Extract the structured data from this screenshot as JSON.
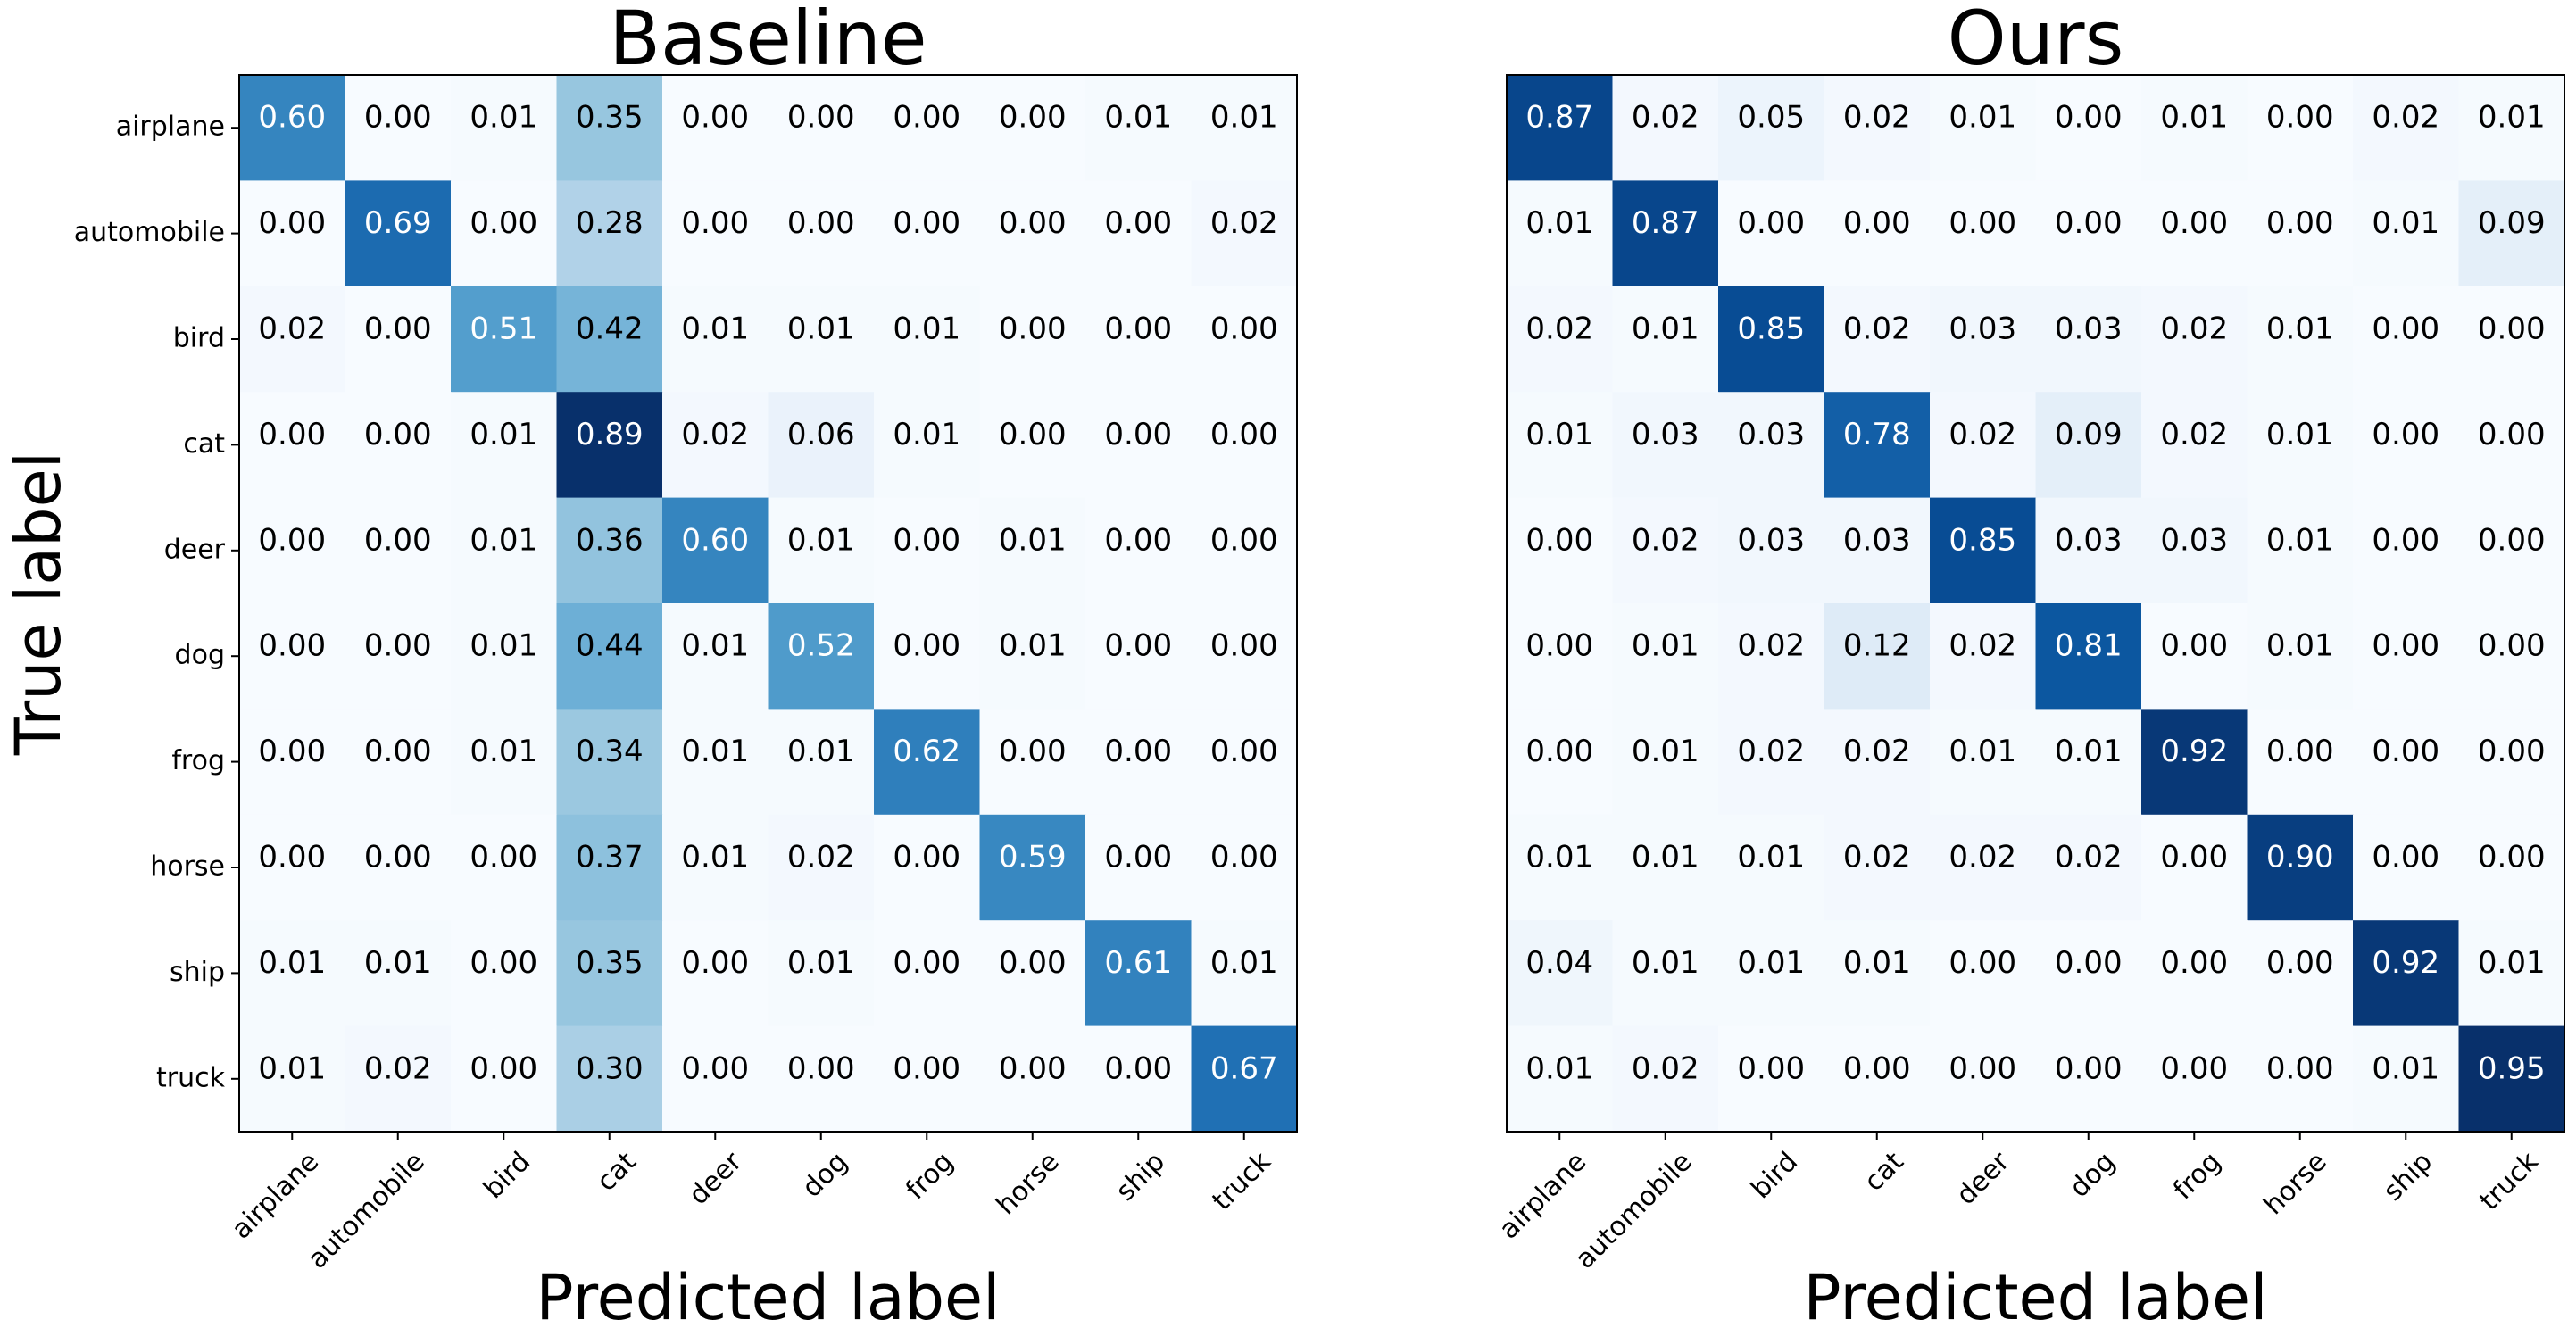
{
  "figure": {
    "ylabel": "True label"
  },
  "chart_data": [
    {
      "type": "heatmap",
      "title": "Baseline",
      "xlabel": "Predicted label",
      "ylabel": "True label",
      "colormap": "Blues",
      "x_categories": [
        "airplane",
        "automobile",
        "bird",
        "cat",
        "deer",
        "dog",
        "frog",
        "horse",
        "ship",
        "truck"
      ],
      "y_categories": [
        "airplane",
        "automobile",
        "bird",
        "cat",
        "deer",
        "dog",
        "frog",
        "horse",
        "ship",
        "truck"
      ],
      "values": [
        [
          0.6,
          0.0,
          0.01,
          0.35,
          0.0,
          0.0,
          0.0,
          0.0,
          0.01,
          0.01
        ],
        [
          0.0,
          0.69,
          0.0,
          0.28,
          0.0,
          0.0,
          0.0,
          0.0,
          0.0,
          0.02
        ],
        [
          0.02,
          0.0,
          0.51,
          0.42,
          0.01,
          0.01,
          0.01,
          0.0,
          0.0,
          0.0
        ],
        [
          0.0,
          0.0,
          0.01,
          0.89,
          0.02,
          0.06,
          0.01,
          0.0,
          0.0,
          0.0
        ],
        [
          0.0,
          0.0,
          0.01,
          0.36,
          0.6,
          0.01,
          0.0,
          0.01,
          0.0,
          0.0
        ],
        [
          0.0,
          0.0,
          0.01,
          0.44,
          0.01,
          0.52,
          0.0,
          0.01,
          0.0,
          0.0
        ],
        [
          0.0,
          0.0,
          0.01,
          0.34,
          0.01,
          0.01,
          0.62,
          0.0,
          0.0,
          0.0
        ],
        [
          0.0,
          0.0,
          0.0,
          0.37,
          0.01,
          0.02,
          0.0,
          0.59,
          0.0,
          0.0
        ],
        [
          0.01,
          0.01,
          0.0,
          0.35,
          0.0,
          0.01,
          0.0,
          0.0,
          0.61,
          0.01
        ],
        [
          0.01,
          0.02,
          0.0,
          0.3,
          0.0,
          0.0,
          0.0,
          0.0,
          0.0,
          0.67
        ]
      ]
    },
    {
      "type": "heatmap",
      "title": "Ours",
      "xlabel": "Predicted label",
      "ylabel": "",
      "colormap": "Blues",
      "x_categories": [
        "airplane",
        "automobile",
        "bird",
        "cat",
        "deer",
        "dog",
        "frog",
        "horse",
        "ship",
        "truck"
      ],
      "y_categories": [
        "airplane",
        "automobile",
        "bird",
        "cat",
        "deer",
        "dog",
        "frog",
        "horse",
        "ship",
        "truck"
      ],
      "values": [
        [
          0.87,
          0.02,
          0.05,
          0.02,
          0.01,
          0.0,
          0.01,
          0.0,
          0.02,
          0.01
        ],
        [
          0.01,
          0.87,
          0.0,
          0.0,
          0.0,
          0.0,
          0.0,
          0.0,
          0.01,
          0.09
        ],
        [
          0.02,
          0.01,
          0.85,
          0.02,
          0.03,
          0.03,
          0.02,
          0.01,
          0.0,
          0.0
        ],
        [
          0.01,
          0.03,
          0.03,
          0.78,
          0.02,
          0.09,
          0.02,
          0.01,
          0.0,
          0.0
        ],
        [
          0.0,
          0.02,
          0.03,
          0.03,
          0.85,
          0.03,
          0.03,
          0.01,
          0.0,
          0.0
        ],
        [
          0.0,
          0.01,
          0.02,
          0.12,
          0.02,
          0.81,
          0.0,
          0.01,
          0.0,
          0.0
        ],
        [
          0.0,
          0.01,
          0.02,
          0.02,
          0.01,
          0.01,
          0.92,
          0.0,
          0.0,
          0.0
        ],
        [
          0.01,
          0.01,
          0.01,
          0.02,
          0.02,
          0.02,
          0.0,
          0.9,
          0.0,
          0.0
        ],
        [
          0.04,
          0.01,
          0.01,
          0.01,
          0.0,
          0.0,
          0.0,
          0.0,
          0.92,
          0.01
        ],
        [
          0.01,
          0.02,
          0.0,
          0.0,
          0.0,
          0.0,
          0.0,
          0.0,
          0.01,
          0.95
        ]
      ]
    }
  ]
}
